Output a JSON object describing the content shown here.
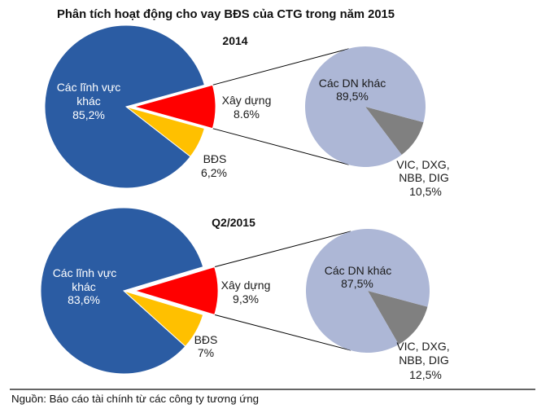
{
  "title": "Phân tích hoạt động cho vay BĐS của CTG trong năm 2015",
  "source": "Nguồn: Báo cáo tài chính từ các công ty tương ứng",
  "chart_data": [
    {
      "type": "pie",
      "title": "2014",
      "slices": [
        {
          "label": "Xây dựng",
          "label_lines": [
            "Xây dựng"
          ],
          "value": 8.6,
          "display": "8.6%",
          "color": "#ff0000",
          "exploded": true
        },
        {
          "label": "BĐS",
          "label_lines": [
            "BĐS"
          ],
          "value": 6.2,
          "display": "6,2%",
          "color": "#ffc000"
        },
        {
          "label": "Các lĩnh vực khác",
          "label_lines": [
            "Các lĩnh vực",
            "khác"
          ],
          "value": 85.2,
          "display": "85,2%",
          "color": "#2b5ca3"
        }
      ],
      "breakdown": {
        "type": "pie",
        "slices": [
          {
            "label": "VIC, DXG, NBB, DIG",
            "label_lines": [
              "VIC, DXG,",
              "NBB, DIG"
            ],
            "value": 10.5,
            "display": "10,5%",
            "color": "#808080"
          },
          {
            "label": "Các DN khác",
            "label_lines": [
              "Các DN khác"
            ],
            "value": 89.5,
            "display": "89,5%",
            "color": "#adb7d6"
          }
        ]
      }
    },
    {
      "type": "pie",
      "title": "Q2/2015",
      "slices": [
        {
          "label": "Xây dựng",
          "label_lines": [
            "Xây dựng"
          ],
          "value": 9.3,
          "display": "9,3%",
          "color": "#ff0000",
          "exploded": true
        },
        {
          "label": "BĐS",
          "label_lines": [
            "BĐS"
          ],
          "value": 7,
          "display": "7%",
          "color": "#ffc000"
        },
        {
          "label": "Các lĩnh vực khác",
          "label_lines": [
            "Các lĩnh vực",
            "khác"
          ],
          "value": 83.6,
          "display": "83,6%",
          "color": "#2b5ca3"
        }
      ],
      "breakdown": {
        "type": "pie",
        "slices": [
          {
            "label": "VIC, DXG, NBB, DIG",
            "label_lines": [
              "VIC, DXG,",
              "NBB, DIG"
            ],
            "value": 12.5,
            "display": "12,5%",
            "color": "#808080"
          },
          {
            "label": "Các DN khác",
            "label_lines": [
              "Các DN khác"
            ],
            "value": 87.5,
            "display": "87,5%",
            "color": "#adb7d6"
          }
        ]
      }
    }
  ]
}
